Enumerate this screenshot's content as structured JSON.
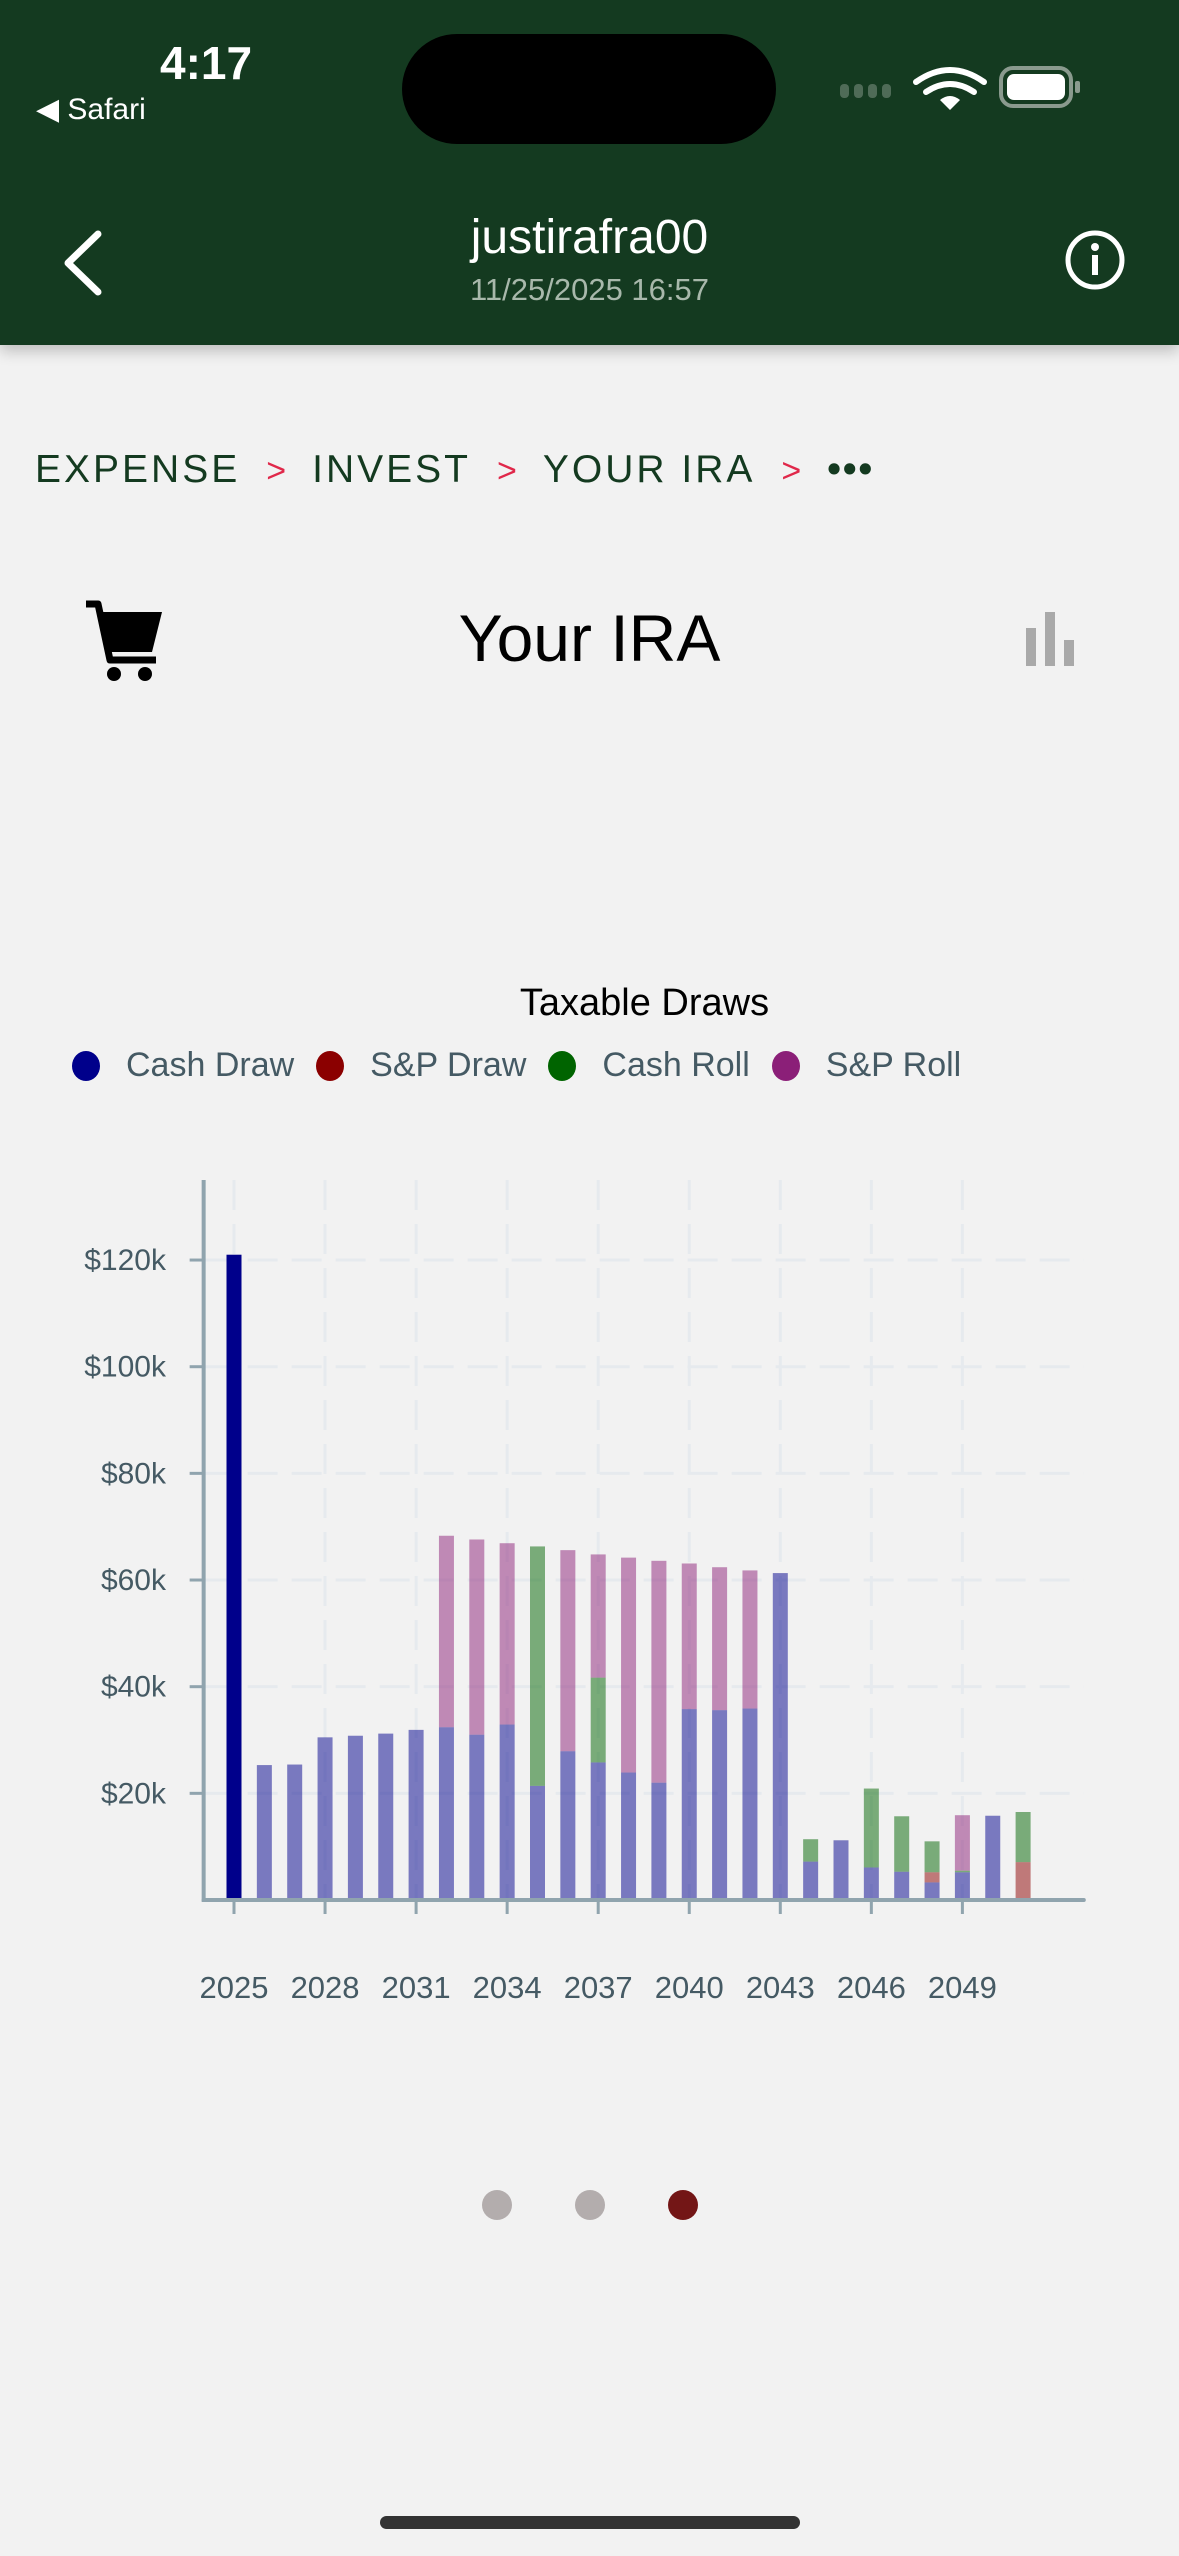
{
  "status_bar": {
    "time": "4:17",
    "back_app": "Safari"
  },
  "header": {
    "title": "justirafra00",
    "subtitle": "11/25/2025 16:57"
  },
  "breadcrumb": {
    "items": [
      "EXPENSE",
      "INVEST",
      "YOUR IRA"
    ],
    "separator": ">",
    "more": "•••"
  },
  "page": {
    "title": "Your IRA"
  },
  "icons": {
    "back": "chevron-left-icon",
    "info": "info-circle-icon",
    "cart": "cart-icon",
    "chart": "bar-chart-icon"
  },
  "colors": {
    "header": "#143a20",
    "separator": "#e0284a",
    "page_dot_active": "#731616",
    "page_dot_inactive": "#b3adad"
  },
  "pager": {
    "count": 3,
    "active": 3
  },
  "chart_data": {
    "type": "bar",
    "stacked": true,
    "title": "Taxable Draws",
    "legend_position": "top",
    "grid": true,
    "categories": [
      2025,
      2026,
      2027,
      2028,
      2029,
      2030,
      2031,
      2032,
      2033,
      2034,
      2035,
      2036,
      2037,
      2038,
      2039,
      2040,
      2041,
      2042,
      2043,
      2044,
      2045,
      2046,
      2047,
      2048,
      2049,
      2050,
      2051
    ],
    "x_tick_labels": [
      "2025",
      "2028",
      "2031",
      "2034",
      "2037",
      "2040",
      "2043",
      "2046",
      "2049"
    ],
    "y_tick_labels": [
      "$20k",
      "$40k",
      "$60k",
      "$80k",
      "$100k",
      "$120k"
    ],
    "y_ticks": [
      20,
      40,
      60,
      80,
      100,
      120
    ],
    "ylim": [
      0,
      135
    ],
    "xlim": [
      2024,
      2053
    ],
    "units": "$k",
    "series": [
      {
        "name": "Cash Draw",
        "color": "#00008b",
        "values": [
          121,
          25.3,
          25.4,
          30.5,
          30.8,
          31.2,
          31.9,
          32.4,
          31.0,
          32.9,
          21.4,
          27.9,
          25.8,
          23.9,
          22.0,
          35.8,
          35.6,
          35.9,
          61.3,
          7.2,
          11.2,
          6.1,
          5.3,
          3.3,
          5.2,
          15.8,
          0
        ]
      },
      {
        "name": "S&P Draw",
        "color": "#8b0000",
        "values": [
          0,
          0,
          0,
          0,
          0,
          0,
          0,
          0,
          0,
          0,
          0,
          0,
          0,
          0,
          0,
          0,
          0,
          0,
          0,
          0,
          0,
          0,
          0,
          1.9,
          0,
          0,
          7.1
        ]
      },
      {
        "name": "Cash Roll",
        "color": "#006400",
        "values": [
          0,
          0,
          0,
          0,
          0,
          0,
          0,
          0,
          0,
          0,
          44.9,
          0,
          15.9,
          0,
          0,
          0,
          0,
          0,
          0,
          4.2,
          0,
          14.8,
          10.4,
          5.8,
          0.3,
          0,
          9.4
        ]
      },
      {
        "name": "S&P Roll",
        "color": "#8b1f78",
        "values": [
          0,
          0,
          0,
          0,
          0,
          0,
          0,
          35.9,
          36.6,
          34.0,
          0,
          37.7,
          23.1,
          40.3,
          41.6,
          27.3,
          26.8,
          25.9,
          0,
          0,
          0,
          0,
          0,
          0,
          10.4,
          0,
          0
        ]
      }
    ]
  }
}
